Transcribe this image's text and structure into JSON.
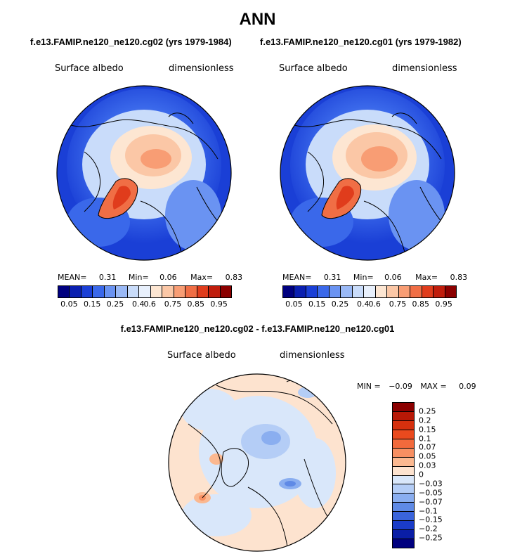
{
  "title": "ANN",
  "cases": {
    "left": "f.e13.FAMIP.ne120_ne120.cg02 (yrs 1979-1984)",
    "right": "f.e13.FAMIP.ne120_ne120.cg01 (yrs 1979-1982)",
    "diff": "f.e13.FAMIP.ne120_ne120.cg02 - f.e13.FAMIP.ne120_ne120.cg01"
  },
  "variable": "Surface albedo",
  "units": "dimensionless",
  "panels": {
    "left": {
      "mean_label": "MEAN=",
      "mean": "0.31",
      "min_label": "Min=",
      "min": "0.06",
      "max_label": "Max=",
      "max": "0.83"
    },
    "right": {
      "mean_label": "MEAN=",
      "mean": "0.31",
      "min_label": "Min=",
      "min": "0.06",
      "max_label": "Max=",
      "max": "0.83"
    },
    "diff": {
      "min_label": "MIN =",
      "min": "−0.09",
      "max_label": "MAX =",
      "max": "0.09"
    }
  },
  "colorbar": {
    "ticks": [
      "0.05",
      "0.15",
      "0.25",
      "0.4",
      "0.6",
      "0.75",
      "0.85",
      "0.95"
    ],
    "colors": [
      "#00007f",
      "#0a1fb0",
      "#1a3fd6",
      "#3a68ea",
      "#6a93f2",
      "#9ab9f6",
      "#c9dcfa",
      "#e8f0fc",
      "#fde6d2",
      "#fbc7a6",
      "#f89d74",
      "#f06e45",
      "#e03c1c",
      "#c01d0c",
      "#8b0000"
    ]
  },
  "diff_colorbar": {
    "ticks": [
      "0.25",
      "0.2",
      "0.15",
      "0.1",
      "0.07",
      "0.05",
      "0.03",
      "0",
      "−0.03",
      "−0.05",
      "−0.07",
      "−0.1",
      "−0.15",
      "−0.2",
      "−0.25"
    ],
    "colors": [
      "#8b0000",
      "#b81806",
      "#d6300e",
      "#ea4a1e",
      "#f26a3c",
      "#f78f62",
      "#fbb890",
      "#fde3cf",
      "#d9e7fa",
      "#b4cdf6",
      "#8aaef0",
      "#5f8ae6",
      "#3a64dc",
      "#1a3cc8",
      "#0a1ea6",
      "#00007f"
    ]
  }
}
